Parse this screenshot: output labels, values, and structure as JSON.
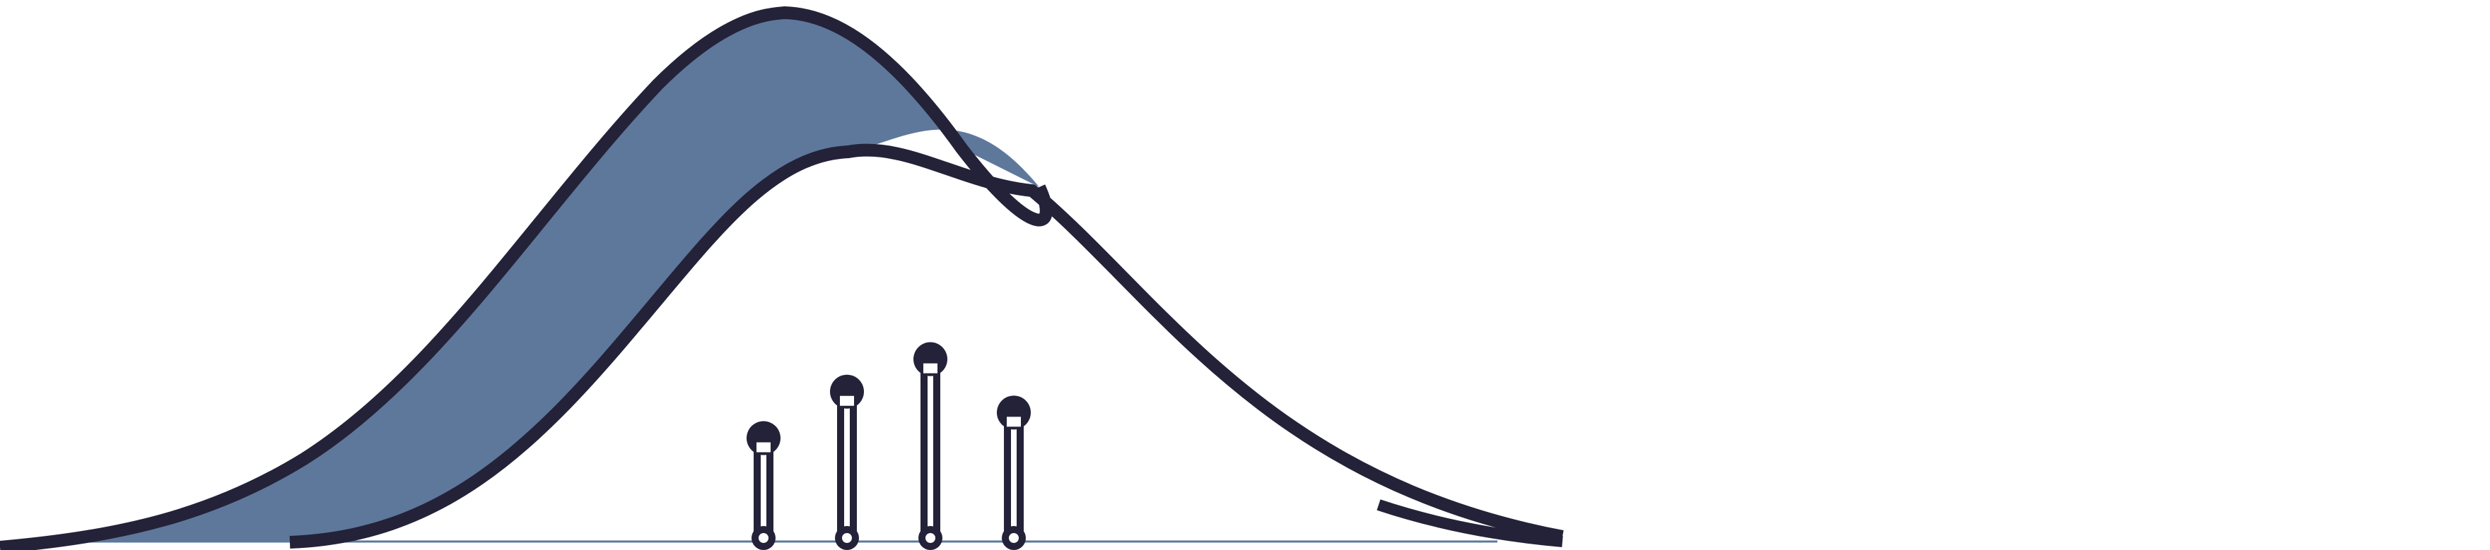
{
  "diagram": {
    "description_free": true,
    "stems": [
      {
        "value": 0.43
      },
      {
        "value": 0.63
      },
      {
        "value": 0.77
      },
      {
        "value": 0.54
      }
    ],
    "colors": {
      "outline": "#242238",
      "fill": "#5e789c",
      "baseline": "#5e789c",
      "background": "#ffffff"
    }
  }
}
